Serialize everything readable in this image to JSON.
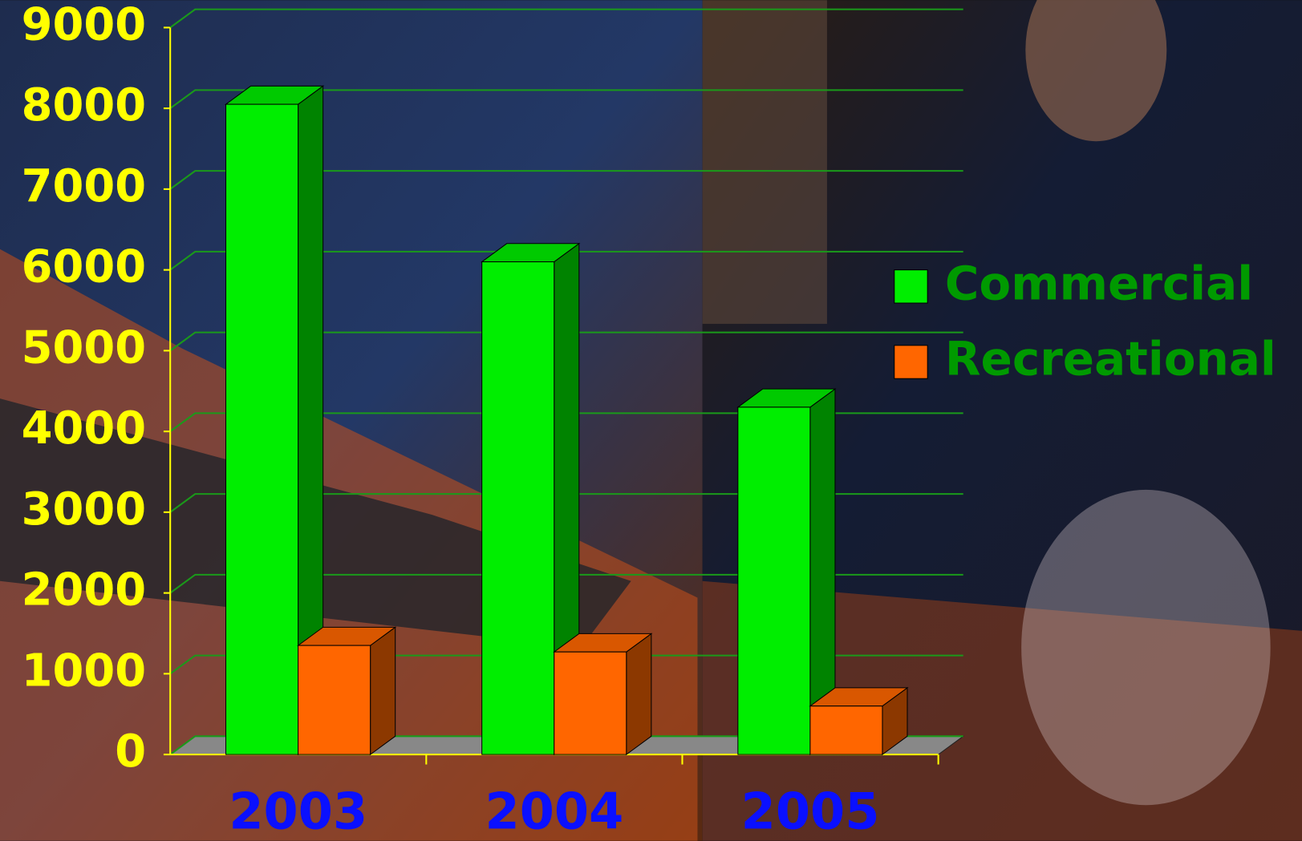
{
  "chart_data": {
    "type": "bar3d",
    "categories": [
      "2003",
      "2004",
      "2005"
    ],
    "series": [
      {
        "name": "Commercial",
        "color": "#00ee00",
        "values": [
          8050,
          6100,
          4300
        ]
      },
      {
        "name": "Recreational",
        "color": "#ff6600",
        "values": [
          1350,
          1270,
          600
        ]
      }
    ],
    "ylim": [
      0,
      9000
    ],
    "yticks": [
      0,
      1000,
      2000,
      3000,
      4000,
      5000,
      6000,
      7000,
      8000,
      9000
    ],
    "grid": true
  }
}
